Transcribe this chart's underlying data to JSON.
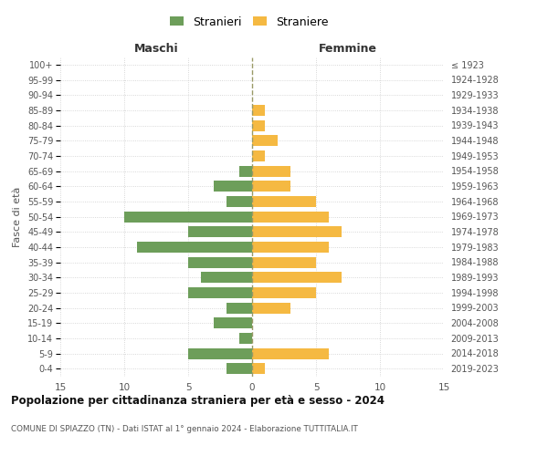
{
  "age_groups": [
    "0-4",
    "5-9",
    "10-14",
    "15-19",
    "20-24",
    "25-29",
    "30-34",
    "35-39",
    "40-44",
    "45-49",
    "50-54",
    "55-59",
    "60-64",
    "65-69",
    "70-74",
    "75-79",
    "80-84",
    "85-89",
    "90-94",
    "95-99",
    "100+"
  ],
  "birth_years": [
    "2019-2023",
    "2014-2018",
    "2009-2013",
    "2004-2008",
    "1999-2003",
    "1994-1998",
    "1989-1993",
    "1984-1988",
    "1979-1983",
    "1974-1978",
    "1969-1973",
    "1964-1968",
    "1959-1963",
    "1954-1958",
    "1949-1953",
    "1944-1948",
    "1939-1943",
    "1934-1938",
    "1929-1933",
    "1924-1928",
    "≤ 1923"
  ],
  "males": [
    2,
    5,
    1,
    3,
    2,
    5,
    4,
    5,
    9,
    5,
    10,
    2,
    3,
    1,
    0,
    0,
    0,
    0,
    0,
    0,
    0
  ],
  "females": [
    1,
    6,
    0,
    0,
    3,
    5,
    7,
    5,
    6,
    7,
    6,
    5,
    3,
    3,
    1,
    2,
    1,
    1,
    0,
    0,
    0
  ],
  "male_color": "#6d9e5a",
  "female_color": "#f5b942",
  "background_color": "#ffffff",
  "grid_color": "#cccccc",
  "title": "Popolazione per cittadinanza straniera per età e sesso - 2024",
  "subtitle": "COMUNE DI SPIAZZO (TN) - Dati ISTAT al 1° gennaio 2024 - Elaborazione TUTTITALIA.IT",
  "xlabel_left": "Maschi",
  "xlabel_right": "Femmine",
  "ylabel_left": "Fasce di età",
  "legend_male": "Stranieri",
  "legend_female": "Straniere",
  "xlim": 15,
  "center_line_color": "#999966",
  "xticks": [
    -15,
    -10,
    -5,
    0,
    5,
    10,
    15
  ]
}
